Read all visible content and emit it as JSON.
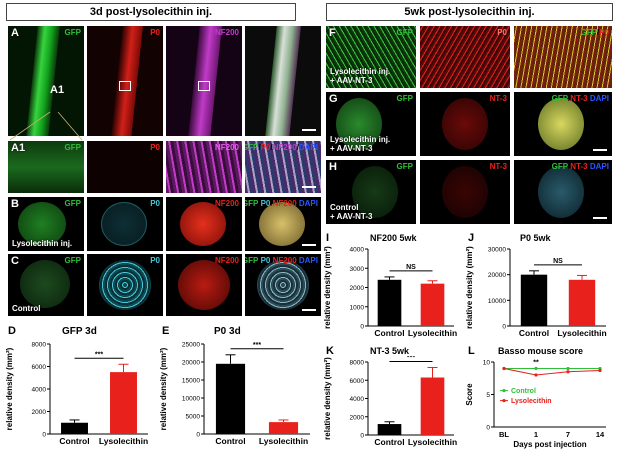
{
  "left_header": "3d post-lysolecithin inj.",
  "right_header": "5wk post-lysolecithin inj.",
  "palette": {
    "green": "#2fbf3a",
    "red": "#e8211c",
    "magenta": "#c13bc8",
    "cyan": "#48c6d8",
    "blue": "#2a57ff",
    "yellow": "#d9d93a"
  },
  "panels": {
    "A": {
      "letter": "A",
      "inset": "A1",
      "ch": [
        "GFP",
        "P0",
        "NF200"
      ]
    },
    "A1": {
      "letter": "A1",
      "ch": [
        "GFP",
        "P0",
        "NF200"
      ],
      "merge": [
        "GFP",
        "P0",
        "NF200",
        "DAPI"
      ]
    },
    "B": {
      "letter": "B",
      "ch": [
        "GFP",
        "P0",
        "NF200"
      ],
      "merge": [
        "GFP",
        "P0",
        "NF200",
        "DAPI"
      ],
      "note": "Lysolecithin inj."
    },
    "C": {
      "letter": "C",
      "ch": [
        "GFP",
        "P0",
        "NF200"
      ],
      "merge": [
        "GFP",
        "P0",
        "NF200",
        "DAPI"
      ],
      "note": "Control"
    },
    "F": {
      "letter": "F",
      "ch": [
        "GFP",
        "P0"
      ],
      "merge": [
        "GFP",
        "P0"
      ],
      "note1": "Lysolecithin inj.",
      "note2": "+ AAV-NT-3"
    },
    "G": {
      "letter": "G",
      "ch": [
        "GFP",
        "NT-3"
      ],
      "merge": [
        "GFP",
        "NT-3",
        "DAPI"
      ],
      "note1": "Lysolecithin inj.",
      "note2": "+ AAV-NT-3"
    },
    "H": {
      "letter": "H",
      "ch": [
        "GFP",
        "NT-3"
      ],
      "merge": [
        "GFP",
        "NT-3",
        "DAPI"
      ],
      "note1": "Control",
      "note2": "+ AAV-NT-3"
    }
  },
  "chart_data": [
    {
      "id": "D",
      "type": "bar",
      "title": "GFP  3d",
      "ylabel": "relative density (mm²)",
      "categories": [
        "Control",
        "Lysolecithin"
      ],
      "values": [
        1000,
        5500
      ],
      "errors": [
        250,
        700
      ],
      "ylim": [
        0,
        8000
      ],
      "yticks": [
        0,
        2000,
        4000,
        6000,
        8000
      ],
      "significance": "***",
      "colors": [
        "#000000",
        "#e8211c"
      ]
    },
    {
      "id": "E",
      "type": "bar",
      "title": "P0  3d",
      "ylabel": "relative density (mm²)",
      "categories": [
        "Control",
        "Lysolecithin"
      ],
      "values": [
        19500,
        3300
      ],
      "errors": [
        2500,
        600
      ],
      "ylim": [
        0,
        25000
      ],
      "yticks": [
        0,
        5000,
        10000,
        15000,
        20000,
        25000
      ],
      "significance": "***",
      "colors": [
        "#000000",
        "#e8211c"
      ]
    },
    {
      "id": "I",
      "type": "bar",
      "title": "NF200 5wk",
      "ylabel": "relative density (mm²)",
      "categories": [
        "Control",
        "Lysolecithin"
      ],
      "values": [
        2400,
        2200
      ],
      "errors": [
        150,
        150
      ],
      "ylim": [
        0,
        4000
      ],
      "yticks": [
        0,
        1000,
        2000,
        3000,
        4000
      ],
      "significance": "NS",
      "colors": [
        "#000000",
        "#e8211c"
      ]
    },
    {
      "id": "J",
      "type": "bar",
      "title": "P0 5wk",
      "ylabel": "relative density (mm²)",
      "categories": [
        "Control",
        "Lysolecithin"
      ],
      "values": [
        20000,
        18000
      ],
      "errors": [
        1500,
        1700
      ],
      "ylim": [
        0,
        30000
      ],
      "yticks": [
        0,
        10000,
        20000,
        30000
      ],
      "significance": "NS",
      "colors": [
        "#000000",
        "#e8211c"
      ]
    },
    {
      "id": "K",
      "type": "bar",
      "title": "NT-3 5wk",
      "ylabel": "relative density (mm²)",
      "categories": [
        "Control",
        "Lysolecithin"
      ],
      "values": [
        1200,
        6300
      ],
      "errors": [
        250,
        1100
      ],
      "ylim": [
        0,
        8000
      ],
      "yticks": [
        0,
        2000,
        4000,
        6000,
        8000
      ],
      "significance": "***",
      "colors": [
        "#000000",
        "#e8211c"
      ]
    },
    {
      "id": "L",
      "type": "line",
      "title": "Basso mouse score",
      "ylabel": "Score",
      "xlabel": "Days post injection",
      "x": [
        "BL",
        "1",
        "7",
        "14"
      ],
      "ylim": [
        0,
        10
      ],
      "yticks": [
        0,
        5,
        10
      ],
      "significance": "**",
      "series": [
        {
          "name": "Control",
          "values": [
            9,
            9,
            9,
            9
          ],
          "color": "#2fbf3a"
        },
        {
          "name": "Lysolecithin",
          "values": [
            9,
            8,
            8.5,
            8.7
          ],
          "color": "#e8211c"
        }
      ]
    }
  ]
}
